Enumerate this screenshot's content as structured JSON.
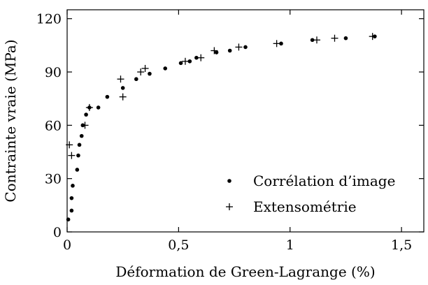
{
  "chart_data": {
    "type": "scatter",
    "xlabel": "Déformation de Green-Lagrange (%)",
    "ylabel": "Contrainte vraie (MPa)",
    "xlim": [
      0,
      1.6
    ],
    "ylim": [
      0,
      125
    ],
    "x_ticks": [
      0,
      0.5,
      1,
      1.5
    ],
    "x_tick_labels": [
      "0",
      "0,5",
      "1",
      "1,5"
    ],
    "y_ticks": [
      0,
      30,
      60,
      90,
      120
    ],
    "y_tick_labels": [
      "0",
      "30",
      "60",
      "90",
      "120"
    ],
    "grid": false,
    "legend_position": "bottom-right",
    "series": [
      {
        "name": "Corrélation d’image",
        "marker": "dot",
        "points": [
          [
            0.005,
            7
          ],
          [
            0.02,
            12
          ],
          [
            0.02,
            19
          ],
          [
            0.025,
            26
          ],
          [
            0.045,
            35
          ],
          [
            0.05,
            43
          ],
          [
            0.055,
            49
          ],
          [
            0.065,
            54
          ],
          [
            0.07,
            60
          ],
          [
            0.085,
            66
          ],
          [
            0.1,
            70
          ],
          [
            0.14,
            70
          ],
          [
            0.18,
            76
          ],
          [
            0.25,
            81
          ],
          [
            0.31,
            86
          ],
          [
            0.37,
            89
          ],
          [
            0.44,
            92
          ],
          [
            0.51,
            95
          ],
          [
            0.55,
            96
          ],
          [
            0.58,
            98
          ],
          [
            0.67,
            101
          ],
          [
            0.73,
            102
          ],
          [
            0.8,
            104
          ],
          [
            0.96,
            106
          ],
          [
            1.1,
            108
          ],
          [
            1.25,
            109
          ],
          [
            1.38,
            110
          ]
        ]
      },
      {
        "name": "Extensométrie",
        "marker": "plus",
        "points": [
          [
            0.01,
            49
          ],
          [
            0.02,
            43
          ],
          [
            0.08,
            60
          ],
          [
            0.1,
            70
          ],
          [
            0.24,
            86
          ],
          [
            0.25,
            76
          ],
          [
            0.33,
            90
          ],
          [
            0.35,
            92
          ],
          [
            0.53,
            96
          ],
          [
            0.6,
            98
          ],
          [
            0.66,
            102
          ],
          [
            0.77,
            104
          ],
          [
            0.94,
            106
          ],
          [
            1.12,
            108
          ],
          [
            1.2,
            109
          ],
          [
            1.37,
            110
          ]
        ]
      }
    ]
  }
}
